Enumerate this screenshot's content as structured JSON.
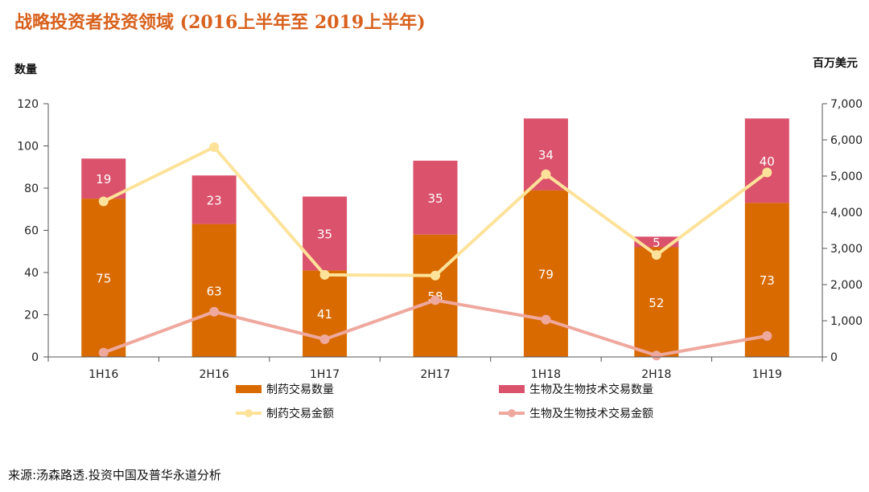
{
  "title": "战略投资者投资领域 (2016上半年至 2019上半年)",
  "source": "来源:汤森路透.投资中国及普华永道分析",
  "chart_data": {
    "type": "bar",
    "stacked": true,
    "categories": [
      "1H16",
      "2H16",
      "1H17",
      "2H17",
      "1H18",
      "2H18",
      "1H19"
    ],
    "ylabel_left": "数量",
    "ylabel_right": "百万美元",
    "ylim_left": [
      0,
      120
    ],
    "yticks_left": [
      0,
      20,
      40,
      60,
      80,
      100,
      120
    ],
    "ylim_right": [
      0,
      7000
    ],
    "yticks_right": [
      "0",
      "1,000",
      "2,000",
      "3,000",
      "4,000",
      "5,000",
      "6,000",
      "7,000"
    ],
    "yticks_right_values": [
      0,
      1000,
      2000,
      3000,
      4000,
      5000,
      6000,
      7000
    ],
    "bar_series": [
      {
        "name": "制药交易数量",
        "color": "#d86a00",
        "values": [
          75,
          63,
          41,
          58,
          79,
          52,
          73
        ]
      },
      {
        "name": "生物及生物技术交易数量",
        "color": "#da526c",
        "values": [
          19,
          23,
          35,
          35,
          34,
          5,
          40
        ]
      }
    ],
    "line_series": [
      {
        "name": "制药交易金额",
        "color": "#fde29a",
        "axis": "right",
        "values": [
          4300,
          5800,
          2270,
          2250,
          5050,
          2820,
          5100
        ]
      },
      {
        "name": "生物及生物技术交易金额",
        "color": "#efa89e",
        "axis": "right",
        "values": [
          120,
          1250,
          490,
          1570,
          1030,
          40,
          580
        ]
      }
    ],
    "legend_position": "bottom",
    "grid": false
  }
}
